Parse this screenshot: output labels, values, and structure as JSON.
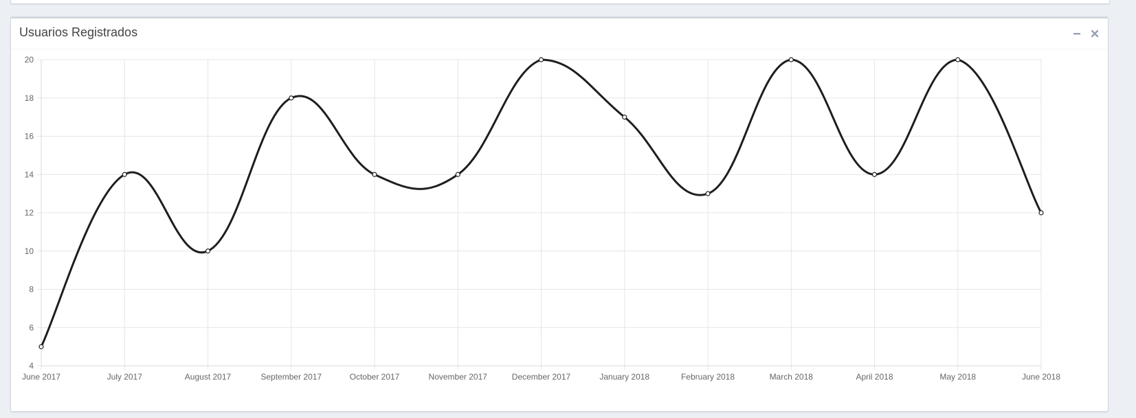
{
  "panel": {
    "title": "Usuarios Registrados",
    "tools": [
      {
        "name": "minimize-icon"
      },
      {
        "name": "close-icon"
      }
    ]
  },
  "colors": {
    "background": "#ecf0f5",
    "line": "#1e1e1e",
    "grid": "#e6e6e6",
    "tick_text": "#666666"
  },
  "chart_data": {
    "type": "line",
    "title": "",
    "xlabel": "",
    "ylabel": "",
    "categories": [
      "June 2017",
      "July 2017",
      "August 2017",
      "September 2017",
      "October 2017",
      "November 2017",
      "December 2017",
      "January 2018",
      "February 2018",
      "March 2018",
      "April 2018",
      "May 2018",
      "June 2018"
    ],
    "values": [
      5,
      14,
      10,
      18,
      14,
      14,
      20,
      17,
      13,
      20,
      14,
      20,
      12
    ],
    "ylim": [
      4,
      20
    ],
    "yticks": [
      4,
      6,
      8,
      10,
      12,
      14,
      16,
      18,
      20
    ],
    "grid": true,
    "legend": "none",
    "curve": "smooth"
  }
}
